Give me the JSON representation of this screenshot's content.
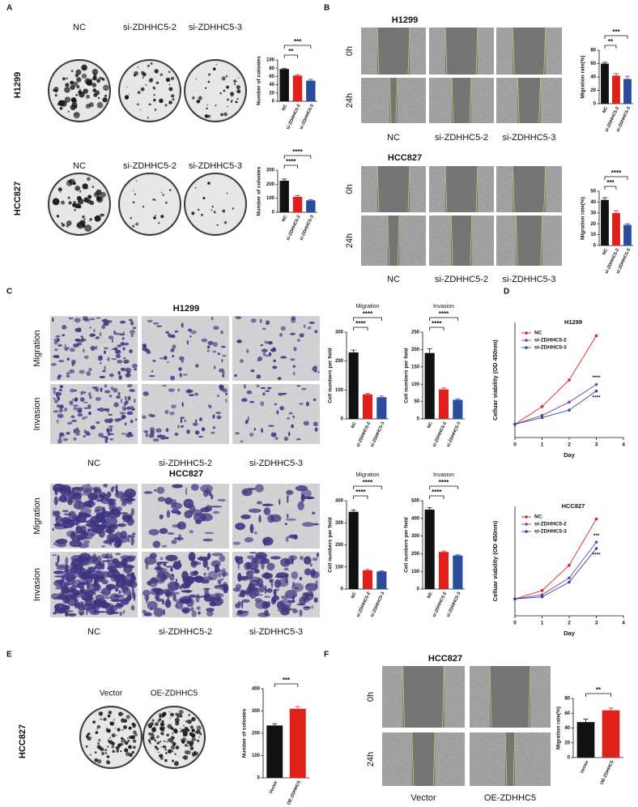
{
  "panels": [
    {
      "label": "A",
      "sections": [
        {
          "title": "H1299",
          "columns": [
            "NC",
            "si-ZDHHC5-2",
            "si-ZDHHC5-3"
          ]
        },
        {
          "title": "HCC827",
          "columns": [
            "NC",
            "si-ZDHHC5-2",
            "si-ZDHHC5-3"
          ]
        }
      ]
    },
    {
      "label": "B",
      "sections": [
        {
          "title": "H1299",
          "rows": [
            "0h",
            "24h"
          ],
          "columns": [
            "NC",
            "si-ZDHHC5-2",
            "si-ZDHHC5-3"
          ]
        },
        {
          "title": "HCC827",
          "rows": [
            "0h",
            "24h"
          ],
          "columns": [
            "NC",
            "si-ZDHHC5-2",
            "si-ZDHHC5-3"
          ]
        }
      ]
    },
    {
      "label": "C",
      "sections": [
        {
          "title": "H1299",
          "rows": [
            "Migration",
            "Invasion"
          ],
          "columns": [
            "NC",
            "si-ZDHHC5-2",
            "si-ZDHHC5-3"
          ]
        },
        {
          "title": "HCC827",
          "rows": [
            "Migration",
            "Invasion"
          ],
          "columns": [
            "NC",
            "si-ZDHHC5-2",
            "si-ZDHHC5-3"
          ]
        }
      ]
    },
    {
      "label": "D"
    },
    {
      "label": "E",
      "sections": [
        {
          "title": "HCC827",
          "columns": [
            "Vector",
            "OE-ZDHHC5"
          ]
        }
      ]
    },
    {
      "label": "F",
      "sections": [
        {
          "title": "HCC827",
          "rows": [
            "0h",
            "24h"
          ],
          "columns": [
            "Vector",
            "OE-ZDHHC5"
          ]
        }
      ]
    }
  ],
  "chart_data": [
    {
      "type": "bar",
      "y_label": "Number of colonies",
      "categories": [
        "NC",
        "si-ZDHHC5-2",
        "si-ZDHHC5-3"
      ],
      "values": [
        78,
        62,
        50
      ],
      "errors": [
        2,
        2,
        3
      ],
      "colors": [
        "#111111",
        "#e0201b",
        "#2a4c9b"
      ],
      "ylim": [
        0,
        100
      ],
      "yticks": [
        0,
        20,
        40,
        60,
        80,
        100
      ],
      "significance": [
        "**",
        "***"
      ]
    },
    {
      "type": "bar",
      "y_label": "Number of colonies",
      "categories": [
        "NC",
        "si-ZDHHC5-2",
        "si-ZDHHC5-3"
      ],
      "values": [
        225,
        110,
        85
      ],
      "errors": [
        12,
        8,
        5
      ],
      "colors": [
        "#111111",
        "#e0201b",
        "#2a4c9b"
      ],
      "ylim": [
        0,
        300
      ],
      "yticks": [
        0,
        100,
        200,
        300
      ],
      "significance": [
        "****",
        "****"
      ]
    },
    {
      "type": "bar",
      "y_label": "Migration rate(%)",
      "categories": [
        "NC",
        "si-ZDHHC5-2",
        "si-ZDHHC5-3"
      ],
      "values": [
        60,
        42,
        37
      ],
      "errors": [
        2,
        3,
        4
      ],
      "colors": [
        "#111111",
        "#e0201b",
        "#2a4c9b"
      ],
      "ylim": [
        0,
        80
      ],
      "yticks": [
        0,
        20,
        40,
        60,
        80
      ],
      "significance": [
        "**",
        "***"
      ]
    },
    {
      "type": "bar",
      "y_label": "Migration rate(%)",
      "categories": [
        "NC",
        "si-ZDHHC5-2",
        "si-ZDHHC5-3"
      ],
      "values": [
        42,
        30,
        19
      ],
      "errors": [
        2,
        2,
        1
      ],
      "colors": [
        "#111111",
        "#e0201b",
        "#2a4c9b"
      ],
      "ylim": [
        0,
        50
      ],
      "yticks": [
        0,
        10,
        20,
        30,
        40,
        50
      ],
      "significance": [
        "***",
        "****"
      ]
    },
    {
      "type": "bar",
      "title": "Migration",
      "y_label": "Cell numbers per field",
      "categories": [
        "NC",
        "si-ZDHHC5-2",
        "si-ZDHHC5-3"
      ],
      "values": [
        230,
        85,
        75
      ],
      "errors": [
        8,
        3,
        4
      ],
      "colors": [
        "#111111",
        "#e0201b",
        "#2a4c9b"
      ],
      "ylim": [
        0,
        300
      ],
      "yticks": [
        0,
        100,
        200,
        300
      ],
      "significance": [
        "****",
        "****"
      ]
    },
    {
      "type": "bar",
      "title": "Invasion",
      "y_label": "Cell numbers per field",
      "categories": [
        "NC",
        "si-ZDHHC5-2",
        "si-ZDHHC5-3"
      ],
      "values": [
        190,
        85,
        55
      ],
      "errors": [
        12,
        4,
        3
      ],
      "colors": [
        "#111111",
        "#e0201b",
        "#2a4c9b"
      ],
      "ylim": [
        0,
        250
      ],
      "yticks": [
        0,
        50,
        100,
        150,
        200,
        250
      ],
      "significance": [
        "****",
        "****"
      ]
    },
    {
      "type": "bar",
      "title": "Migration",
      "y_label": "Cell numbers per field",
      "categories": [
        "NC",
        "si-ZDHHC5-2",
        "si-ZDHHC5-3"
      ],
      "values": [
        350,
        85,
        80
      ],
      "errors": [
        8,
        4,
        3
      ],
      "colors": [
        "#111111",
        "#e0201b",
        "#2a4c9b"
      ],
      "ylim": [
        0,
        400
      ],
      "yticks": [
        0,
        100,
        200,
        300,
        400
      ],
      "significance": [
        "****",
        "****"
      ]
    },
    {
      "type": "bar",
      "title": "Invasion",
      "y_label": "Cell numbers per field",
      "categories": [
        "NC",
        "si-ZDHHC5-2",
        "si-ZDHHC5-3"
      ],
      "values": [
        450,
        210,
        190
      ],
      "errors": [
        10,
        5,
        4
      ],
      "colors": [
        "#111111",
        "#e0201b",
        "#2a4c9b"
      ],
      "ylim": [
        0,
        500
      ],
      "yticks": [
        0,
        100,
        200,
        300,
        400,
        500
      ],
      "significance": [
        "****",
        "****"
      ]
    },
    {
      "type": "line",
      "title": "H1299",
      "x_label": "Day",
      "y_label": "Celluar viability (OD 450nm)",
      "x": [
        0,
        1,
        2,
        3
      ],
      "xlim": [
        0,
        4
      ],
      "xticks": [
        0,
        1,
        2,
        3,
        4
      ],
      "ylim": [
        0,
        2.6
      ],
      "series": [
        {
          "name": "NC",
          "color": "#e0201b",
          "values": [
            0.3,
            0.7,
            1.3,
            2.3
          ]
        },
        {
          "name": "si-ZDHHC5-2",
          "color": "#7b3fa0",
          "values": [
            0.3,
            0.5,
            0.8,
            1.2
          ],
          "significance": "****"
        },
        {
          "name": "si-ZDHHC5-3",
          "color": "#2a4c9b",
          "values": [
            0.3,
            0.45,
            0.62,
            1.05
          ],
          "significance": "****"
        }
      ]
    },
    {
      "type": "line",
      "title": "HCC827",
      "x_label": "Day",
      "y_label": "Celluar viability (OD 450nm)",
      "x": [
        0,
        1,
        2,
        3
      ],
      "xlim": [
        0,
        4
      ],
      "xticks": [
        0,
        1,
        2,
        3,
        4
      ],
      "ylim": [
        0,
        2.6
      ],
      "series": [
        {
          "name": "NC",
          "color": "#e0201b",
          "values": [
            0.4,
            0.6,
            1.2,
            2.3
          ]
        },
        {
          "name": "si-ZDHHC5-2",
          "color": "#7b3fa0",
          "values": [
            0.4,
            0.5,
            0.9,
            1.75
          ],
          "significance": "***"
        },
        {
          "name": "si-ZDHHC5-3",
          "color": "#2a4c9b",
          "values": [
            0.4,
            0.45,
            0.8,
            1.6
          ],
          "significance": "****"
        }
      ]
    },
    {
      "type": "bar",
      "y_label": "Number of colonies",
      "categories": [
        "Vector",
        "OE-ZDHHC5"
      ],
      "values": [
        235,
        310
      ],
      "errors": [
        8,
        10
      ],
      "colors": [
        "#111111",
        "#e0201b"
      ],
      "ylim": [
        0,
        400
      ],
      "yticks": [
        0,
        100,
        200,
        300,
        400
      ],
      "significance": [
        "***"
      ]
    },
    {
      "type": "bar",
      "y_label": "Migration rate(%)",
      "categories": [
        "Vector",
        "OE-ZDHHC5"
      ],
      "values": [
        48,
        64
      ],
      "errors": [
        4,
        3
      ],
      "colors": [
        "#111111",
        "#e0201b"
      ],
      "ylim": [
        0,
        80
      ],
      "yticks": [
        0,
        20,
        40,
        60,
        80
      ],
      "significance": [
        "**"
      ]
    }
  ]
}
